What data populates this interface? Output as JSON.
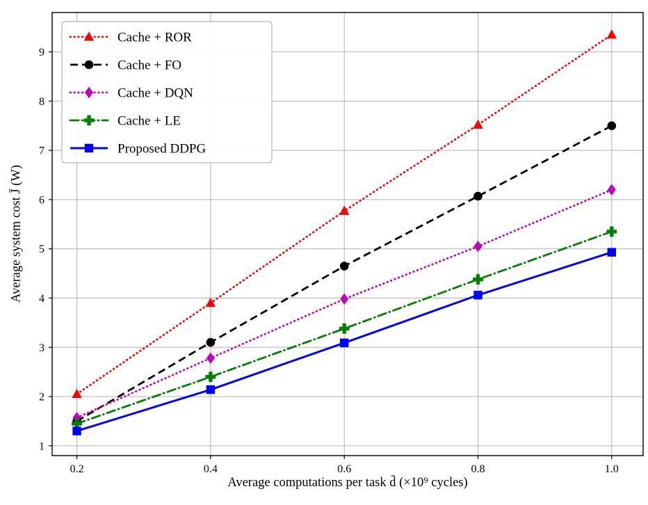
{
  "chart_data": {
    "type": "line",
    "title": "",
    "xlabel": "Average computations per task d̄ (×10⁹ cycles)",
    "ylabel": "Average system cost J̄ (W)",
    "x": [
      0.2,
      0.4,
      0.6,
      0.8,
      1.0
    ],
    "xticks": [
      0.2,
      0.4,
      0.6,
      0.8,
      1.0
    ],
    "yticks": [
      1,
      2,
      3,
      4,
      5,
      6,
      7,
      8,
      9
    ],
    "xlim": [
      0.163,
      1.047
    ],
    "ylim": [
      0.8,
      9.8
    ],
    "grid": true,
    "legend_position": "upper-left",
    "series": [
      {
        "name": "Cache + ROR",
        "values": [
          2.05,
          3.9,
          5.77,
          7.52,
          9.35
        ],
        "color": "#ff0000",
        "linestyle": "dotted",
        "marker": "triangle"
      },
      {
        "name": "Cache + FO",
        "values": [
          1.5,
          3.1,
          4.65,
          6.07,
          7.5
        ],
        "color": "#000000",
        "linestyle": "dashed",
        "marker": "circle"
      },
      {
        "name": "Cache + DQN",
        "values": [
          1.57,
          2.78,
          3.98,
          5.05,
          6.2
        ],
        "color": "#c000c0",
        "linestyle": "dotted",
        "marker": "diamond"
      },
      {
        "name": "Cache + LE",
        "values": [
          1.45,
          2.4,
          3.38,
          4.38,
          5.35
        ],
        "color": "#008000",
        "linestyle": "dashdot",
        "marker": "plus"
      },
      {
        "name": "Proposed DDPG",
        "values": [
          1.3,
          2.14,
          3.09,
          4.06,
          4.93
        ],
        "color": "#0000ff",
        "linestyle": "solid",
        "marker": "square"
      }
    ]
  }
}
